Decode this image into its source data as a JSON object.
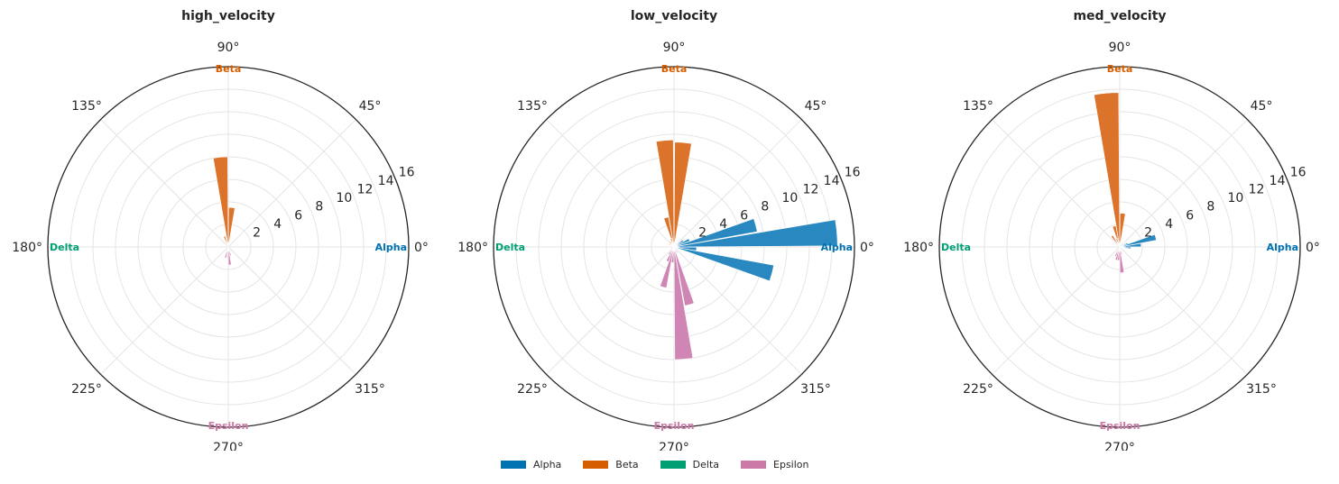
{
  "colors": {
    "Alpha": "#2a88c0",
    "Beta": "#dc732b",
    "Delta": "#009e73",
    "Epsilon": "#cf86b4",
    "legend": {
      "Alpha": "#0072b2",
      "Beta": "#d55e00",
      "Delta": "#009e73",
      "Epsilon": "#cc79a7"
    }
  },
  "legend": [
    {
      "name": "Alpha",
      "label": "Alpha"
    },
    {
      "name": "Beta",
      "label": "Beta"
    },
    {
      "name": "Delta",
      "label": "Delta"
    },
    {
      "name": "Epsilon",
      "label": "Epsilon"
    }
  ],
  "chart_data": [
    {
      "type": "polar-bar",
      "title": "high_velocity",
      "rlim": [
        0,
        16
      ],
      "rticks": [
        "2",
        "4",
        "6",
        "8",
        "10",
        "12",
        "14",
        "16"
      ],
      "angle_ticks": [
        "0°",
        "45°",
        "90°",
        "135°",
        "180°",
        "225°",
        "270°",
        "315°"
      ],
      "category_labels": [
        "Alpha",
        "Beta",
        "Delta",
        "Epsilon"
      ],
      "series": [
        {
          "name": "Alpha",
          "bars": []
        },
        {
          "name": "Beta",
          "bars": [
            {
              "angle_deg": 85,
              "value": 3.5
            },
            {
              "angle_deg": 95,
              "value": 8.0
            },
            {
              "angle_deg": 105,
              "value": 0.7
            },
            {
              "angle_deg": 110,
              "value": 1.0
            }
          ]
        },
        {
          "name": "Delta",
          "bars": []
        },
        {
          "name": "Epsilon",
          "bars": [
            {
              "angle_deg": 250,
              "value": 0.7
            },
            {
              "angle_deg": 255,
              "value": 1.0
            },
            {
              "angle_deg": 265,
              "value": 0.8
            },
            {
              "angle_deg": 270,
              "value": 1.0
            },
            {
              "angle_deg": 275,
              "value": 1.6
            },
            {
              "angle_deg": 285,
              "value": 0.8
            }
          ]
        }
      ]
    },
    {
      "type": "polar-bar",
      "title": "low_velocity",
      "rlim": [
        0,
        16
      ],
      "rticks": [
        "2",
        "4",
        "6",
        "8",
        "10",
        "12",
        "14",
        "16"
      ],
      "angle_ticks": [
        "0°",
        "45°",
        "90°",
        "135°",
        "180°",
        "225°",
        "270°",
        "315°"
      ],
      "category_labels": [
        "Alpha",
        "Beta",
        "Delta",
        "Epsilon"
      ],
      "series": [
        {
          "name": "Alpha",
          "bars": [
            {
              "angle_deg": 355,
              "value": 2.0
            },
            {
              "angle_deg": 345,
              "value": 9.0
            },
            {
              "angle_deg": 5,
              "value": 14.5
            },
            {
              "angle_deg": 15,
              "value": 7.5
            },
            {
              "angle_deg": 25,
              "value": 1.5
            },
            {
              "angle_deg": 35,
              "value": 1.0
            }
          ]
        },
        {
          "name": "Beta",
          "bars": [
            {
              "angle_deg": 85,
              "value": 9.3
            },
            {
              "angle_deg": 95,
              "value": 9.5
            },
            {
              "angle_deg": 105,
              "value": 2.7
            },
            {
              "angle_deg": 110,
              "value": 0.8
            },
            {
              "angle_deg": 130,
              "value": 0.6
            },
            {
              "angle_deg": 150,
              "value": 0.5
            }
          ]
        },
        {
          "name": "Delta",
          "bars": []
        },
        {
          "name": "Epsilon",
          "bars": [
            {
              "angle_deg": 235,
              "value": 0.8
            },
            {
              "angle_deg": 245,
              "value": 1.4
            },
            {
              "angle_deg": 255,
              "value": 3.7
            },
            {
              "angle_deg": 265,
              "value": 1.4
            },
            {
              "angle_deg": 275,
              "value": 10.0
            },
            {
              "angle_deg": 285,
              "value": 5.3
            },
            {
              "angle_deg": 300,
              "value": 0.6
            }
          ]
        }
      ]
    },
    {
      "type": "polar-bar",
      "title": "med_velocity",
      "rlim": [
        0,
        16
      ],
      "rticks": [
        "2",
        "4",
        "6",
        "8",
        "10",
        "12",
        "14",
        "16"
      ],
      "angle_ticks": [
        "0°",
        "45°",
        "90°",
        "135°",
        "180°",
        "225°",
        "270°",
        "315°"
      ],
      "category_labels": [
        "Alpha",
        "Beta",
        "Delta",
        "Epsilon"
      ],
      "series": [
        {
          "name": "Alpha",
          "bars": [
            {
              "angle_deg": 355,
              "value": 1.0
            },
            {
              "angle_deg": 5,
              "value": 1.9
            },
            {
              "angle_deg": 15,
              "value": 3.3
            },
            {
              "angle_deg": 25,
              "value": 0.8
            }
          ]
        },
        {
          "name": "Beta",
          "bars": [
            {
              "angle_deg": 85,
              "value": 3.0
            },
            {
              "angle_deg": 95,
              "value": 13.7
            },
            {
              "angle_deg": 105,
              "value": 1.9
            },
            {
              "angle_deg": 110,
              "value": 0.8
            },
            {
              "angle_deg": 125,
              "value": 1.2
            }
          ]
        },
        {
          "name": "Delta",
          "bars": []
        },
        {
          "name": "Epsilon",
          "bars": [
            {
              "angle_deg": 245,
              "value": 0.9
            },
            {
              "angle_deg": 255,
              "value": 1.2
            },
            {
              "angle_deg": 265,
              "value": 1.2
            },
            {
              "angle_deg": 275,
              "value": 2.3
            },
            {
              "angle_deg": 285,
              "value": 0.7
            }
          ]
        }
      ]
    }
  ]
}
